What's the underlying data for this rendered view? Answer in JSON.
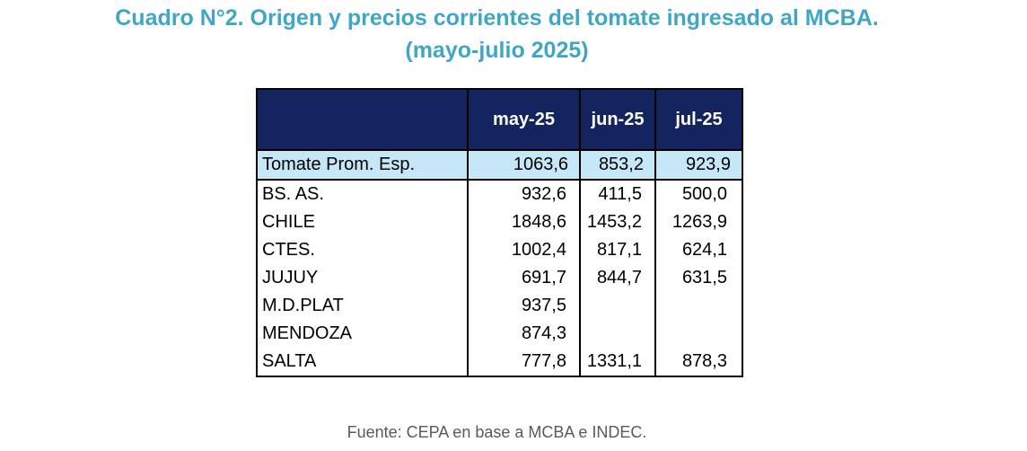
{
  "title": {
    "line1": "Cuadro N°2. Origen y precios corrientes del tomate ingresado al MCBA.",
    "line2": "(mayo-julio 2025)"
  },
  "table": {
    "columns": [
      "",
      "may-25",
      "jun-25",
      "jul-25"
    ],
    "rows": [
      {
        "label": "Tomate Prom. Esp.",
        "values": [
          "1063,6",
          "853,2",
          "923,9"
        ]
      },
      {
        "label": "BS. AS.",
        "values": [
          "932,6",
          "411,5",
          "500,0"
        ]
      },
      {
        "label": "CHILE",
        "values": [
          "1848,6",
          "1453,2",
          "1263,9"
        ]
      },
      {
        "label": "CTES.",
        "values": [
          "1002,4",
          "817,1",
          "624,1"
        ]
      },
      {
        "label": "JUJUY",
        "values": [
          "691,7",
          "844,7",
          "631,5"
        ]
      },
      {
        "label": "M.D.PLAT",
        "values": [
          "937,5",
          "",
          ""
        ]
      },
      {
        "label": "MENDOZA",
        "values": [
          "874,3",
          "",
          ""
        ]
      },
      {
        "label": "SALTA",
        "values": [
          "777,8",
          "1331,1",
          "878,3"
        ]
      }
    ]
  },
  "source": "Fuente: CEPA en base a MCBA e INDEC.",
  "colors": {
    "title": "#3fa6c6",
    "header_bg": "#14245e",
    "highlight_row": "#c5e7f7",
    "source_text": "#5a5a5a"
  }
}
